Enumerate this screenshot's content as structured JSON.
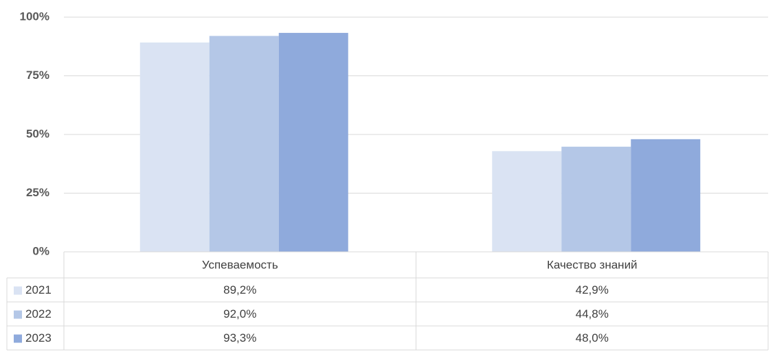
{
  "chart_data": {
    "type": "bar",
    "categories": [
      "Успеваемость",
      "Качество знаний"
    ],
    "series": [
      {
        "name": "2021",
        "color": "#dae3f3",
        "values": [
          89.2,
          42.9
        ],
        "value_labels": [
          "89,2%",
          "42,9%"
        ]
      },
      {
        "name": "2022",
        "color": "#b4c7e7",
        "values": [
          92.0,
          44.8
        ],
        "value_labels": [
          "92,0%",
          "44,8%"
        ]
      },
      {
        "name": "2023",
        "color": "#8faadc",
        "values": [
          93.3,
          48.0
        ],
        "value_labels": [
          "93,3%",
          "48,0%"
        ]
      }
    ],
    "ylim": [
      0,
      100
    ],
    "yticks": [
      {
        "value": 0,
        "label": "0%"
      },
      {
        "value": 25,
        "label": "25%"
      },
      {
        "value": 50,
        "label": "50%"
      },
      {
        "value": 75,
        "label": "75%"
      },
      {
        "value": 100,
        "label": "100%"
      }
    ],
    "grid": true,
    "legend": "table"
  }
}
